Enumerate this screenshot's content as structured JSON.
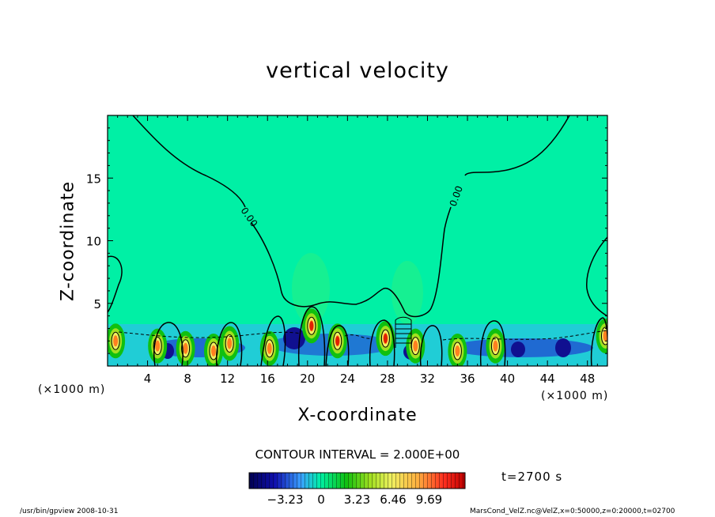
{
  "chart_data": {
    "type": "heatmap",
    "title": "vertical velocity",
    "xlabel": "X-coordinate",
    "ylabel": "Z-coordinate",
    "x_unit": "(×1000 m)",
    "y_unit": "(×1000 m)",
    "xlim": [
      0,
      50
    ],
    "ylim": [
      0,
      20
    ],
    "x_ticks": [
      4,
      8,
      12,
      16,
      20,
      24,
      28,
      32,
      36,
      40,
      44,
      48
    ],
    "y_ticks": [
      5,
      10,
      15
    ],
    "contour_interval_text": "CONTOUR INTERVAL = 2.000E+00",
    "contour_labels": [
      "0.00",
      "0.00"
    ],
    "colorbar": {
      "tick_labels": [
        "−3.23",
        "0",
        "3.23",
        "6.46",
        "9.69"
      ],
      "tick_values": [
        -3.23,
        0,
        3.23,
        6.46,
        9.69
      ],
      "range": [
        -6.46,
        12.92
      ]
    },
    "time_label": "t=2700 s",
    "colors": {
      "background": "#00f0a5",
      "positive": "#ff2000",
      "negative": "#10109a"
    }
  },
  "footer": {
    "left": "/usr/bin/gpview   2008-10-31",
    "right": "MarsCond_VelZ.nc@VelZ,x=0:50000,z=0:20000,t=02700"
  }
}
